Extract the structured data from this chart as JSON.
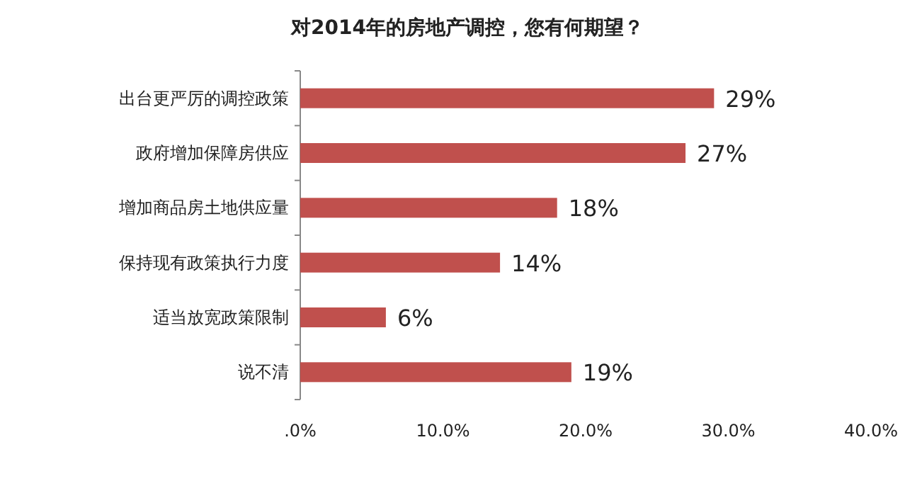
{
  "chart_data": {
    "type": "bar",
    "orientation": "horizontal",
    "title": "对2014年的房地产调控，您有何期望？",
    "categories": [
      "出台更严厉的调控政策",
      "政府增加保障房供应",
      "增加商品房土地供应量",
      "保持现有政策执行力度",
      "适当放宽政策限制",
      "说不清"
    ],
    "values": [
      29,
      27,
      18,
      14,
      6,
      19
    ],
    "value_labels": [
      "29%",
      "27%",
      "18%",
      "14%",
      "6%",
      "19%"
    ],
    "color": "#c0504d",
    "xlim": [
      0,
      40
    ],
    "xticks": [
      {
        "value": 0,
        "label": ".0%"
      },
      {
        "value": 10,
        "label": "10.0%"
      },
      {
        "value": 20,
        "label": "20.0%"
      },
      {
        "value": 30,
        "label": "30.0%"
      },
      {
        "value": 40,
        "label": "40.0%"
      }
    ],
    "grid": false
  }
}
